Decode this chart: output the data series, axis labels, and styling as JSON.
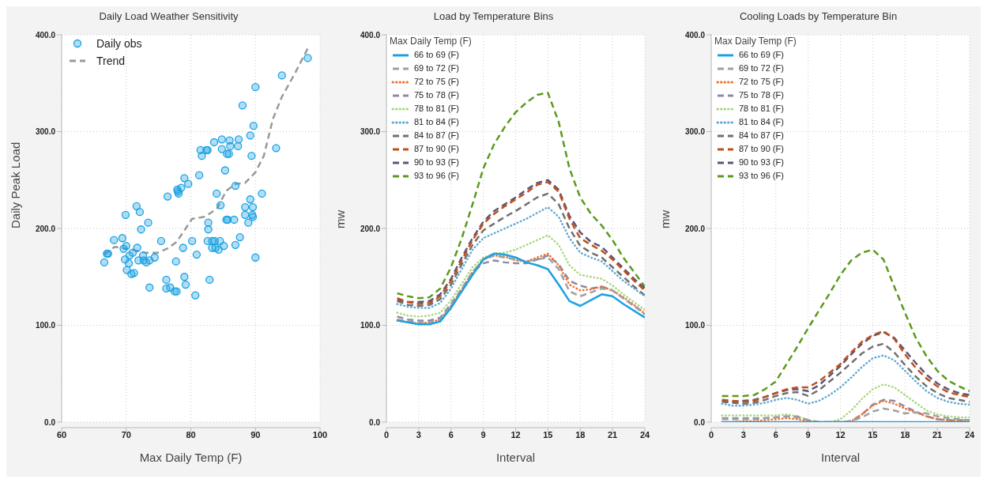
{
  "chart_data": [
    {
      "type": "scatter",
      "title": "Daily Load Weather Sensitivity",
      "xlabel": "Max Daily Temp (F)",
      "ylabel": "Daily Peak Load",
      "xlim": [
        60,
        100
      ],
      "xticks": [
        60,
        70,
        80,
        90,
        100
      ],
      "ylim": [
        0,
        400
      ],
      "yticks": [
        {
          "value": 0,
          "label": "0.0"
        },
        {
          "value": 100,
          "label": "100.0"
        },
        {
          "value": 200,
          "label": "200.0"
        },
        {
          "value": 300,
          "label": "300.0"
        },
        {
          "value": 400,
          "label": "400.0"
        }
      ],
      "grid": true,
      "legend": "top left",
      "x": [
        66.6,
        67.0,
        67.2,
        68.1,
        69.4,
        69.6,
        69.9,
        70.0,
        69.8,
        70.4,
        70.5,
        70.1,
        70.8,
        71.2,
        71.0,
        71.6,
        71.7,
        71.9,
        72.1,
        72.3,
        72.6,
        72.7,
        73.1,
        73.4,
        73.6,
        73.6,
        74.4,
        75.4,
        76.4,
        76.2,
        76.2,
        76.8,
        77.5,
        77.8,
        77.7,
        77.9,
        78.0,
        78.1,
        78.5,
        78.8,
        79.0,
        79.0,
        79.2,
        79.6,
        80.2,
        80.7,
        80.9,
        81.3,
        81.5,
        81.7,
        82.4,
        82.6,
        82.7,
        82.7,
        82.6,
        82.9,
        83.3,
        83.3,
        83.6,
        83.7,
        83.8,
        84.0,
        84.3,
        84.5,
        84.6,
        84.8,
        84.8,
        85.1,
        85.3,
        85.5,
        85.6,
        85.7,
        85.9,
        86.0,
        86.1,
        86.7,
        86.9,
        86.9,
        87.3,
        87.4,
        87.6,
        88.0,
        88.4,
        88.4,
        88.9,
        89.2,
        89.2,
        89.4,
        89.5,
        89.6,
        89.6,
        89.7,
        90.0,
        90.0,
        91.0,
        93.2,
        94.1,
        98.1
      ],
      "series": [
        {
          "name": "Daily obs",
          "marker": "circle",
          "color": "#1ba1e2",
          "values": [
            165,
            174,
            174,
            188,
            190,
            179,
            214,
            182,
            168,
            164,
            172,
            157,
            153,
            154,
            175,
            223,
            180,
            167,
            217,
            199,
            172,
            167,
            165,
            206,
            167,
            139,
            170,
            187,
            233,
            147,
            138,
            139,
            135,
            135,
            166,
            240,
            238,
            236,
            242,
            180,
            252,
            150,
            142,
            246,
            187,
            131,
            173,
            255,
            281,
            275,
            281,
            281,
            206,
            199,
            187,
            147,
            187,
            180,
            289,
            187,
            180,
            236,
            178,
            187,
            224,
            292,
            282,
            182,
            260,
            209,
            277,
            209,
            277,
            291,
            285,
            209,
            244,
            183,
            285,
            292,
            191,
            327,
            222,
            214,
            206,
            296,
            230,
            275,
            214,
            222,
            212,
            306,
            346,
            170,
            236,
            283,
            358,
            376
          ]
        },
        {
          "name": "Trend",
          "type": "line",
          "line_style": "dashed",
          "marker": "none",
          "color": "#999999",
          "x": [
            66.6,
            68.2,
            70.1,
            73.0,
            74.9,
            76.3,
            77.8,
            79.2,
            80.2,
            82.1,
            84.0,
            85.5,
            86.9,
            88.4,
            90.0,
            91.3,
            92.7,
            94.1,
            96.1,
            98.1
          ],
          "values": [
            173,
            181,
            179,
            175,
            175,
            179,
            186,
            200,
            210,
            212,
            220,
            239,
            246,
            247,
            258,
            275,
            313,
            336,
            360,
            386
          ]
        }
      ]
    },
    {
      "type": "line",
      "title": "Load by Temperature Bins",
      "xlabel": "Interval",
      "ylabel": "mw",
      "legend_title": "Max Daily Temp (F)",
      "xlim": [
        0,
        24
      ],
      "xticks": [
        0,
        3,
        6,
        9,
        12,
        15,
        18,
        21,
        24
      ],
      "ylim": [
        0,
        400
      ],
      "yticks": [
        {
          "value": 0,
          "label": "0.0"
        },
        {
          "value": 100,
          "label": "100.0"
        },
        {
          "value": 200,
          "label": "200.0"
        },
        {
          "value": 300,
          "label": "300.0"
        },
        {
          "value": 400,
          "label": "400.0"
        }
      ],
      "grid": true,
      "legend": "top left",
      "marker": "none",
      "x": [
        1,
        2,
        3,
        4,
        5,
        6,
        7,
        8,
        9,
        10,
        11,
        12,
        13,
        14,
        15,
        16,
        17,
        18,
        19,
        20,
        21,
        22,
        23,
        24
      ],
      "series": [
        {
          "name": "66 to 69 (F)",
          "color": "#1ba1e2",
          "line_style": "solid",
          "values": [
            105,
            103,
            101,
            101,
            104,
            118,
            135,
            152,
            168,
            174,
            173,
            170,
            165,
            162,
            158,
            142,
            125,
            120,
            126,
            132,
            130,
            122,
            115,
            108
          ]
        },
        {
          "name": "69 to 72 (F)",
          "color": "#a0a0a0",
          "line_style": "dashed",
          "values": [
            106,
            104,
            103,
            103,
            106,
            120,
            137,
            155,
            168,
            172,
            170,
            168,
            166,
            168,
            170,
            158,
            135,
            130,
            134,
            138,
            136,
            128,
            120,
            111
          ]
        },
        {
          "name": "72 to 75 (F)",
          "color": "#f0702c",
          "line_style": "dotted",
          "values": [
            105,
            103,
            102,
            103,
            106,
            120,
            137,
            155,
            168,
            172,
            171,
            167,
            166,
            170,
            174,
            162,
            142,
            136,
            137,
            140,
            136,
            129,
            121,
            112
          ]
        },
        {
          "name": "75 to 78 (F)",
          "color": "#8f88a8",
          "line_style": "dashed",
          "values": [
            109,
            106,
            105,
            105,
            108,
            122,
            138,
            155,
            164,
            167,
            165,
            164,
            164,
            168,
            172,
            163,
            146,
            141,
            138,
            140,
            136,
            128,
            120,
            113
          ]
        },
        {
          "name": "78 to 81 (F)",
          "color": "#a8d880",
          "line_style": "dotted",
          "values": [
            113,
            110,
            109,
            110,
            113,
            126,
            143,
            160,
            170,
            174,
            175,
            178,
            183,
            188,
            193,
            183,
            162,
            152,
            150,
            148,
            141,
            132,
            124,
            116
          ]
        },
        {
          "name": "81 to 84 (F)",
          "color": "#5fa8d3",
          "line_style": "dotted",
          "values": [
            122,
            119,
            118,
            118,
            123,
            138,
            158,
            178,
            190,
            195,
            200,
            205,
            210,
            216,
            222,
            212,
            190,
            175,
            170,
            166,
            156,
            146,
            138,
            130
          ]
        },
        {
          "name": "84 to 87 (F)",
          "color": "#707070",
          "line_style": "dashed",
          "values": [
            125,
            121,
            120,
            121,
            127,
            142,
            163,
            183,
            198,
            205,
            212,
            218,
            225,
            232,
            236,
            225,
            200,
            182,
            175,
            170,
            160,
            150,
            140,
            131
          ]
        },
        {
          "name": "87 to 90 (F)",
          "color": "#c0501a",
          "line_style": "dashed",
          "values": [
            128,
            124,
            122,
            123,
            130,
            146,
            167,
            188,
            205,
            215,
            223,
            230,
            237,
            245,
            248,
            238,
            210,
            190,
            183,
            177,
            168,
            157,
            146,
            136
          ]
        },
        {
          "name": "90 to 93 (F)",
          "color": "#5c5478",
          "line_style": "dashed",
          "values": [
            126,
            124,
            124,
            125,
            132,
            148,
            170,
            190,
            207,
            218,
            225,
            232,
            240,
            247,
            250,
            240,
            213,
            196,
            186,
            181,
            170,
            159,
            148,
            138
          ]
        },
        {
          "name": "93 to 96 (F)",
          "color": "#5a9a1e",
          "line_style": "dashed",
          "values": [
            133,
            130,
            128,
            129,
            138,
            160,
            190,
            225,
            262,
            287,
            305,
            320,
            330,
            338,
            340,
            310,
            262,
            232,
            215,
            203,
            188,
            170,
            155,
            140
          ]
        }
      ]
    },
    {
      "type": "line",
      "title": "Cooling Loads by Temperature Bin",
      "xlabel": "Interval",
      "ylabel": "mw",
      "legend_title": "Max Daily Temp (F)",
      "xlim": [
        0,
        24
      ],
      "xticks": [
        0,
        3,
        6,
        9,
        12,
        15,
        18,
        21,
        24
      ],
      "ylim": [
        0,
        400
      ],
      "yticks": [
        {
          "value": 0,
          "label": "0.0"
        },
        {
          "value": 100,
          "label": "100.0"
        },
        {
          "value": 200,
          "label": "200.0"
        },
        {
          "value": 300,
          "label": "300.0"
        },
        {
          "value": 400,
          "label": "400.0"
        }
      ],
      "grid": true,
      "legend": "top left",
      "marker": "none",
      "x": [
        1,
        2,
        3,
        4,
        5,
        6,
        7,
        8,
        9,
        10,
        11,
        12,
        13,
        14,
        15,
        16,
        17,
        18,
        19,
        20,
        21,
        22,
        23,
        24
      ],
      "series": [
        {
          "name": "66 to 69 (F)",
          "color": "#1ba1e2",
          "line_style": "solid",
          "values": [
            0,
            0,
            0,
            0,
            0,
            0,
            0,
            0,
            0,
            0,
            0,
            0,
            0,
            0,
            0,
            0,
            0,
            0,
            0,
            0,
            0,
            0,
            0,
            0
          ]
        },
        {
          "name": "69 to 72 (F)",
          "color": "#a0a0a0",
          "line_style": "dashed",
          "values": [
            3,
            3,
            3,
            3,
            4,
            5,
            6,
            6,
            2,
            0,
            0,
            0,
            1,
            5,
            11,
            14,
            12,
            9,
            10,
            9,
            6,
            4,
            3,
            2
          ]
        },
        {
          "name": "72 to 75 (F)",
          "color": "#f0702c",
          "line_style": "dotted",
          "values": [
            0,
            0,
            1,
            1,
            2,
            3,
            4,
            3,
            1,
            0,
            0,
            0,
            1,
            8,
            17,
            22,
            19,
            14,
            10,
            6,
            3,
            2,
            1,
            1
          ]
        },
        {
          "name": "75 to 78 (F)",
          "color": "#8f88a8",
          "line_style": "dashed",
          "values": [
            4,
            4,
            4,
            4,
            4,
            5,
            6,
            5,
            2,
            0,
            0,
            0,
            1,
            8,
            18,
            23,
            22,
            16,
            11,
            6,
            3,
            2,
            2,
            2
          ]
        },
        {
          "name": "78 to 81 (F)",
          "color": "#a8d880",
          "line_style": "dotted",
          "values": [
            7,
            7,
            7,
            7,
            7,
            7,
            8,
            6,
            2,
            0,
            0,
            3,
            12,
            24,
            34,
            39,
            36,
            28,
            20,
            12,
            8,
            6,
            5,
            5
          ]
        },
        {
          "name": "81 to 84 (F)",
          "color": "#5fa8d3",
          "line_style": "dotted",
          "values": [
            19,
            17,
            17,
            18,
            20,
            23,
            25,
            23,
            19,
            22,
            28,
            36,
            46,
            57,
            66,
            69,
            64,
            53,
            42,
            32,
            25,
            21,
            19,
            18
          ]
        },
        {
          "name": "84 to 87 (F)",
          "color": "#707070",
          "line_style": "dashed",
          "values": [
            21,
            20,
            19,
            20,
            23,
            27,
            30,
            31,
            27,
            33,
            42,
            51,
            61,
            71,
            78,
            81,
            72,
            59,
            47,
            37,
            30,
            25,
            23,
            21
          ]
        },
        {
          "name": "87 to 90 (F)",
          "color": "#c0501a",
          "line_style": "dashed",
          "values": [
            23,
            22,
            21,
            22,
            26,
            30,
            34,
            36,
            36,
            42,
            51,
            60,
            72,
            83,
            90,
            94,
            86,
            70,
            56,
            45,
            37,
            31,
            28,
            26
          ]
        },
        {
          "name": "90 to 93 (F)",
          "color": "#5c5478",
          "line_style": "dashed",
          "values": [
            22,
            21,
            22,
            23,
            26,
            30,
            33,
            34,
            32,
            38,
            48,
            58,
            70,
            81,
            89,
            93,
            87,
            74,
            61,
            49,
            40,
            34,
            30,
            28
          ]
        },
        {
          "name": "93 to 96 (F)",
          "color": "#5a9a1e",
          "line_style": "dashed",
          "values": [
            27,
            27,
            27,
            28,
            34,
            42,
            60,
            78,
            97,
            115,
            133,
            152,
            167,
            175,
            178,
            168,
            140,
            113,
            87,
            68,
            53,
            43,
            37,
            32
          ]
        }
      ]
    }
  ]
}
